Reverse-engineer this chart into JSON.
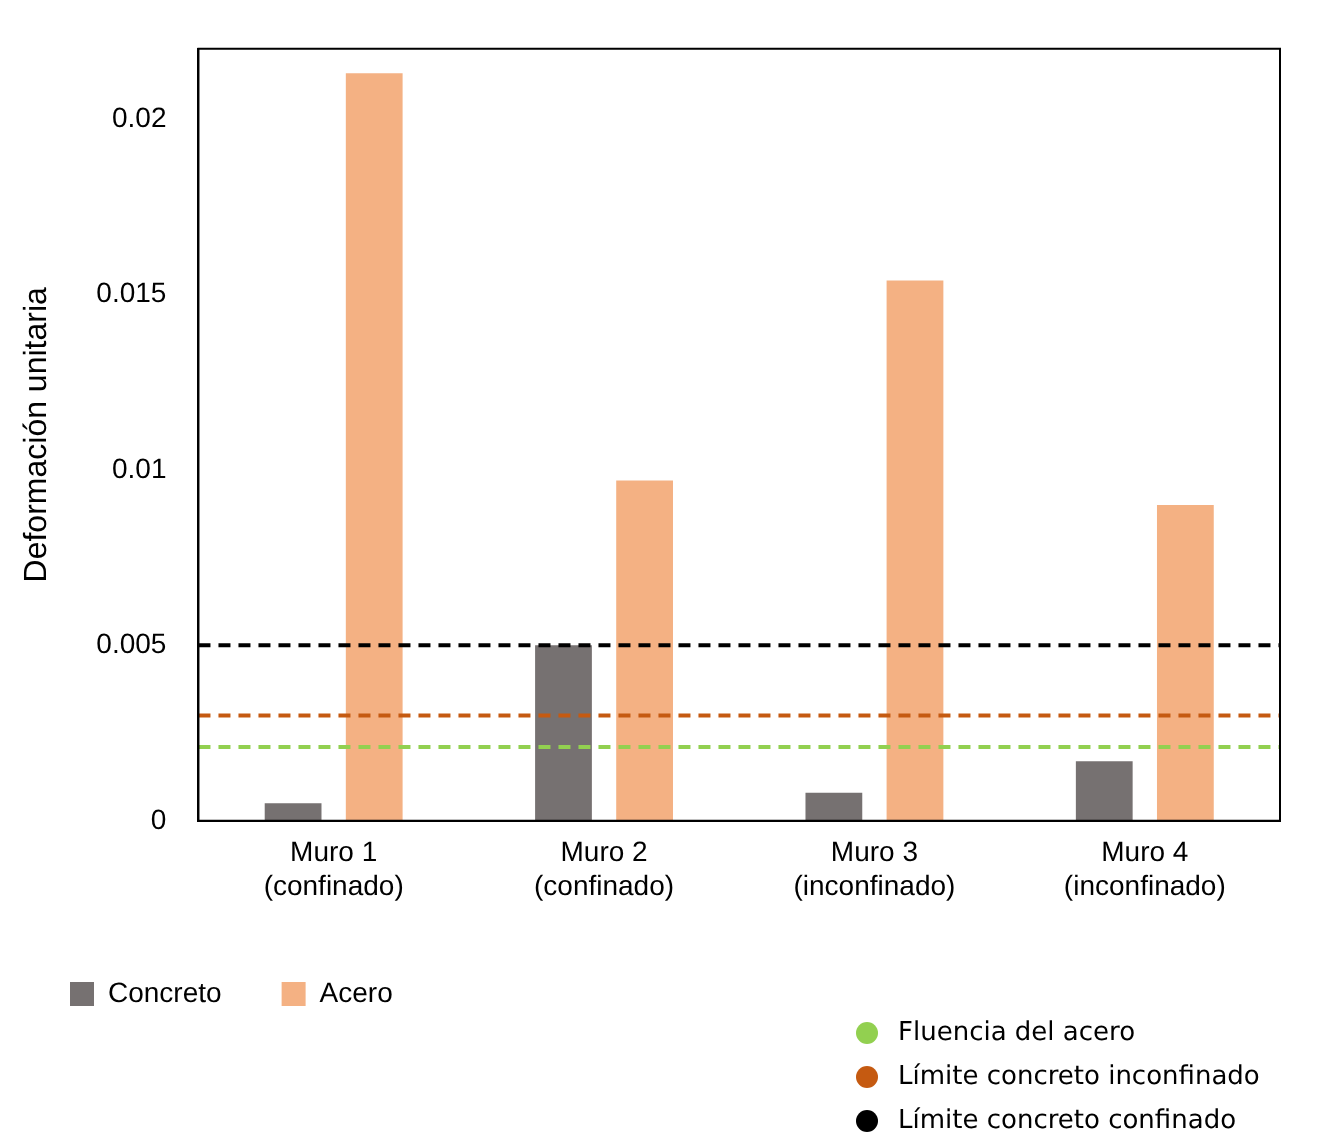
{
  "chart_data": {
    "type": "bar",
    "ylabel": "Deformación unitaria",
    "categories": [
      "Muro 1\n(confinado)",
      "Muro 2\n(confinado)",
      "Muro 3\n(inconfinado)",
      "Muro 4\n(inconfinado)"
    ],
    "series": [
      {
        "name": "Concreto",
        "color": "#767171",
        "values": [
          0.0005,
          0.005,
          0.0008,
          0.0017
        ]
      },
      {
        "name": "Acero",
        "color": "#f4b183",
        "values": [
          0.0213,
          0.0097,
          0.0154,
          0.009
        ]
      }
    ],
    "ylim": [
      0,
      0.022
    ],
    "yticks": [
      0,
      0.005,
      0.01,
      0.015,
      0.02
    ],
    "grid": false,
    "legend": "bottom",
    "ref_lines": [
      {
        "axis": "y",
        "value": 0.0021,
        "label": "Fluencia del acero",
        "color": "#92d050",
        "line_style": "dashed"
      },
      {
        "axis": "y",
        "value": 0.003,
        "label": "Límite concreto inconfinado",
        "color": "#c55a11",
        "line_style": "dashed"
      },
      {
        "axis": "y",
        "value": 0.005,
        "label": "Límite concreto confinado",
        "color": "#000000",
        "line_style": "dashed"
      }
    ]
  }
}
